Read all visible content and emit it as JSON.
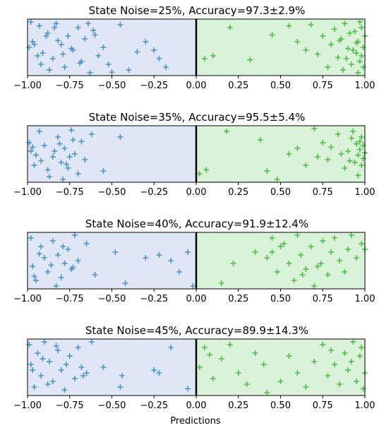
{
  "figure": {
    "xlabel_shared": "Predictions"
  },
  "colors": {
    "negative_bg": "#dfe6f5",
    "positive_bg": "#daf2d8",
    "negative_marker": "#4a90c4",
    "positive_marker": "#4cb848",
    "divider": "#000000"
  },
  "chart_data": [
    {
      "type": "scatter",
      "title": "State Noise=25%, Accuracy=97.3±2.9%",
      "xlabel": "",
      "ylabel": "",
      "xlim": [
        -1.0,
        1.0
      ],
      "ylim": [
        0,
        1
      ],
      "xticks": [
        "−1.00",
        "−0.75",
        "−0.50",
        "−0.25",
        "0.00",
        "0.25",
        "0.50",
        "0.75",
        "1.00"
      ],
      "xtick_values": [
        -1.0,
        -0.75,
        -0.5,
        -0.25,
        0.0,
        0.25,
        0.5,
        0.75,
        1.0
      ],
      "series": [
        {
          "x": [
            -0.98,
            -0.97,
            -0.93,
            -0.91,
            -0.88,
            -0.85,
            -0.83,
            -0.8,
            -0.78,
            -0.76,
            -0.73,
            -0.7,
            -0.68,
            -0.66,
            -0.63,
            -0.61,
            -0.58,
            -0.55,
            -0.52,
            -0.45,
            -0.4,
            -0.3,
            -0.25,
            -0.22,
            -0.18,
            -0.99,
            -0.96,
            -0.94,
            -0.92,
            -0.89,
            -0.87,
            -0.84,
            -0.82,
            -0.79,
            -0.74,
            -0.69,
            -0.64,
            -0.6,
            -0.5,
            -0.35
          ],
          "y": [
            0.95,
            0.6,
            0.88,
            0.4,
            0.75,
            0.3,
            0.92,
            0.55,
            0.15,
            0.7,
            0.45,
            0.85,
            0.25,
            0.65,
            0.05,
            0.8,
            0.35,
            0.5,
            0.2,
            0.9,
            0.1,
            0.6,
            0.45,
            0.3,
            0.15,
            0.5,
            0.55,
            0.35,
            0.2,
            0.7,
            0.1,
            0.85,
            0.62,
            0.38,
            0.48,
            0.22,
            0.92,
            0.72,
            0.06,
            0.42
          ]
        },
        {
          "x": [
            0.05,
            0.1,
            0.2,
            0.32,
            0.45,
            0.55,
            0.6,
            0.65,
            0.68,
            0.72,
            0.75,
            0.78,
            0.8,
            0.82,
            0.84,
            0.86,
            0.88,
            0.9,
            0.92,
            0.94,
            0.95,
            0.96,
            0.97,
            0.98,
            0.99,
            1.0,
            0.99,
            0.98,
            0.97,
            0.96,
            0.95,
            0.93,
            0.91,
            0.89,
            0.87,
            0.85
          ],
          "y": [
            0.3,
            0.35,
            0.85,
            0.28,
            0.72,
            0.88,
            0.6,
            0.45,
            0.9,
            0.38,
            0.7,
            0.15,
            0.55,
            0.82,
            0.32,
            0.65,
            0.92,
            0.48,
            0.2,
            0.78,
            0.4,
            0.6,
            0.25,
            0.85,
            0.5,
            0.7,
            0.15,
            0.35,
            0.95,
            0.05,
            0.58,
            0.45,
            0.75,
            0.3,
            0.1,
            0.62
          ]
        }
      ]
    },
    {
      "type": "scatter",
      "title": "State Noise=35%, Accuracy=95.5±5.4%",
      "xlabel": "",
      "ylabel": "",
      "xlim": [
        -1.0,
        1.0
      ],
      "ylim": [
        0,
        1
      ],
      "xticks": [
        "−1.00",
        "−0.75",
        "−0.50",
        "−0.25",
        "0.00",
        "0.25",
        "0.50",
        "0.75",
        "1.00"
      ],
      "xtick_values": [
        -1.0,
        -0.75,
        -0.5,
        -0.25,
        0.0,
        0.25,
        0.5,
        0.75,
        1.0
      ],
      "series": [
        {
          "x": [
            -0.99,
            -0.98,
            -0.96,
            -0.93,
            -0.9,
            -0.87,
            -0.85,
            -0.82,
            -0.8,
            -0.78,
            -0.76,
            -0.74,
            -0.72,
            -0.7,
            -0.68,
            -0.66,
            -0.62,
            -0.55,
            -0.45,
            -0.97,
            -0.95,
            -0.92,
            -0.88,
            -0.84,
            -0.81,
            -0.79,
            -0.77,
            -0.75,
            -0.73
          ],
          "y": [
            0.7,
            0.55,
            0.3,
            0.9,
            0.65,
            0.1,
            0.45,
            0.8,
            0.35,
            0.6,
            0.25,
            0.92,
            0.5,
            0.15,
            0.72,
            0.4,
            0.85,
            0.2,
            0.8,
            0.62,
            0.48,
            0.38,
            0.22,
            0.55,
            0.68,
            0.05,
            0.32,
            0.45,
            0.75
          ]
        },
        {
          "x": [
            0.02,
            0.06,
            0.18,
            0.38,
            0.42,
            0.48,
            0.55,
            0.6,
            0.65,
            0.7,
            0.72,
            0.75,
            0.78,
            0.8,
            0.84,
            0.88,
            0.9,
            0.92,
            0.94,
            0.95,
            0.96,
            0.97,
            0.98,
            0.99,
            1.0,
            0.99,
            0.98,
            0.97,
            0.96,
            0.93,
            0.91,
            0.86
          ],
          "y": [
            0.15,
            0.22,
            0.9,
            0.75,
            0.2,
            0.05,
            0.5,
            0.6,
            0.3,
            0.95,
            0.45,
            0.7,
            0.4,
            0.62,
            0.85,
            0.25,
            0.55,
            0.78,
            0.35,
            0.68,
            0.48,
            0.58,
            0.8,
            0.42,
            0.52,
            0.65,
            0.3,
            0.72,
            0.12,
            0.9,
            0.38,
            0.5
          ]
        }
      ]
    },
    {
      "type": "scatter",
      "title": "State Noise=40%, Accuracy=91.9±12.4%",
      "xlabel": "",
      "ylabel": "",
      "xlim": [
        -1.0,
        1.0
      ],
      "ylim": [
        0,
        1
      ],
      "xticks": [
        "−1.00",
        "−0.75",
        "−0.50",
        "−0.25",
        "0.00",
        "0.25",
        "0.50",
        "0.75",
        "1.00"
      ],
      "xtick_values": [
        -1.0,
        -0.75,
        -0.5,
        -0.25,
        0.0,
        0.25,
        0.5,
        0.75,
        1.0
      ],
      "series": [
        {
          "x": [
            -0.98,
            -0.97,
            -0.95,
            -0.92,
            -0.9,
            -0.88,
            -0.85,
            -0.82,
            -0.8,
            -0.78,
            -0.76,
            -0.74,
            -0.72,
            -0.7,
            -0.65,
            -0.6,
            -0.48,
            -0.42,
            -0.3,
            -0.22,
            -0.15,
            -0.1,
            -0.05,
            -0.02,
            -0.96,
            -0.93,
            -0.86,
            -0.83,
            -0.79,
            -0.73
          ],
          "y": [
            0.9,
            0.4,
            0.15,
            0.75,
            0.55,
            0.3,
            0.85,
            0.6,
            0.2,
            0.45,
            0.7,
            0.35,
            0.95,
            0.5,
            0.8,
            0.25,
            0.65,
            0.1,
            0.55,
            0.6,
            0.5,
            0.3,
            0.65,
            0.05,
            0.22,
            0.62,
            0.42,
            0.05,
            0.75,
            0.38
          ]
        },
        {
          "x": [
            0.15,
            0.22,
            0.35,
            0.42,
            0.45,
            0.48,
            0.52,
            0.55,
            0.58,
            0.6,
            0.62,
            0.65,
            0.68,
            0.7,
            0.72,
            0.75,
            0.78,
            0.8,
            0.82,
            0.85,
            0.88,
            0.9,
            0.92,
            0.95,
            0.98,
            1.0,
            0.5,
            0.45,
            0.63,
            0.74
          ],
          "y": [
            0.1,
            0.45,
            0.65,
            0.55,
            0.9,
            0.3,
            0.8,
            0.45,
            0.15,
            0.95,
            0.6,
            0.35,
            0.75,
            0.05,
            0.4,
            0.85,
            0.25,
            0.65,
            0.9,
            0.5,
            0.3,
            0.7,
            0.95,
            0.55,
            0.8,
            0.7,
            0.75,
            0.65,
            0.25,
            0.45
          ]
        }
      ]
    },
    {
      "type": "scatter",
      "title": "State Noise=45%, Accuracy=89.9±14.3%",
      "xlabel": "Predictions",
      "ylabel": "",
      "xlim": [
        -1.0,
        1.0
      ],
      "ylim": [
        0,
        1
      ],
      "xticks": [
        "−1.00",
        "−0.75",
        "−0.50",
        "−0.25",
        "0.00",
        "0.25",
        "0.50",
        "0.75",
        "1.00"
      ],
      "xtick_values": [
        -1.0,
        -0.75,
        -0.5,
        -0.25,
        0.0,
        0.25,
        0.5,
        0.75,
        1.0
      ],
      "series": [
        {
          "x": [
            -0.99,
            -0.98,
            -0.96,
            -0.94,
            -0.92,
            -0.9,
            -0.87,
            -0.85,
            -0.82,
            -0.8,
            -0.78,
            -0.75,
            -0.72,
            -0.7,
            -0.68,
            -0.65,
            -0.62,
            -0.55,
            -0.45,
            -0.44,
            -0.25,
            -0.22,
            -0.15,
            -0.05,
            -0.97,
            -0.91,
            -0.88,
            -0.83,
            -0.77,
            -0.67
          ],
          "y": [
            0.9,
            0.55,
            0.15,
            0.75,
            0.35,
            0.95,
            0.6,
            0.25,
            0.8,
            0.45,
            0.1,
            0.7,
            0.3,
            0.85,
            0.5,
            0.4,
            0.95,
            0.5,
            0.15,
            0.35,
            0.45,
            0.4,
            0.85,
            0.12,
            0.45,
            0.65,
            0.2,
            0.88,
            0.55,
            0.35
          ]
        },
        {
          "x": [
            0.02,
            0.05,
            0.1,
            0.15,
            0.2,
            0.25,
            0.3,
            0.35,
            0.4,
            0.42,
            0.5,
            0.55,
            0.6,
            0.65,
            0.7,
            0.75,
            0.78,
            0.8,
            0.82,
            0.85,
            0.88,
            0.9,
            0.92,
            0.95,
            0.98,
            1.0,
            0.99,
            0.97,
            0.93,
            0.08
          ],
          "y": [
            0.5,
            0.85,
            0.3,
            0.65,
            0.9,
            0.4,
            0.2,
            0.75,
            0.55,
            0.05,
            0.25,
            0.7,
            0.4,
            0.15,
            0.6,
            0.9,
            0.35,
            0.8,
            0.55,
            0.2,
            0.75,
            0.45,
            0.6,
            0.25,
            0.85,
            0.4,
            0.12,
            0.7,
            0.95,
            0.72
          ]
        }
      ]
    }
  ]
}
